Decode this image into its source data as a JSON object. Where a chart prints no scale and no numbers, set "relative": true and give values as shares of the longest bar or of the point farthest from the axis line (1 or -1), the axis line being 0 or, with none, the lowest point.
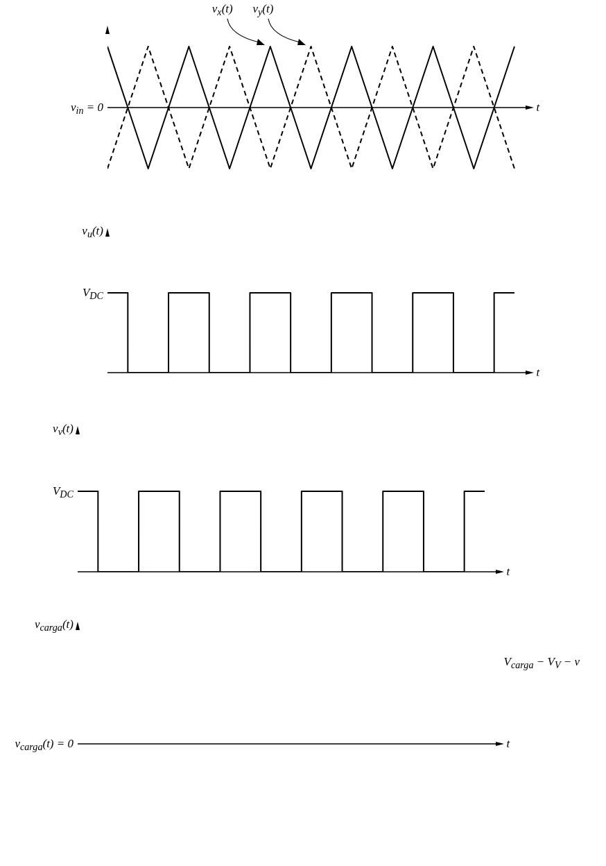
{
  "chart_data": [
    {
      "type": "line",
      "relative": true,
      "marker": "none",
      "xlabel": "t",
      "categories": [
        null,
        null,
        null,
        null,
        null,
        null,
        null,
        null,
        null,
        null,
        null,
        null,
        null,
        null,
        null,
        null,
        null,
        null,
        null,
        null,
        null
      ],
      "annotations": [
        "v$_{in}$ = 0"
      ],
      "series": [
        {
          "name": "v$_{x}$(t)",
          "color": "#000000",
          "line_style": "solid",
          "values": [
            1,
            0,
            -1,
            0,
            1,
            0,
            -1,
            0,
            1,
            0,
            -1,
            0,
            1,
            0,
            -1,
            0,
            1,
            0,
            -1,
            0,
            1
          ]
        },
        {
          "name": "v$_{y}$(t)",
          "color": "#000000",
          "line_style": "dashed",
          "values": [
            -1,
            0,
            1,
            0,
            -1,
            0,
            1,
            0,
            -1,
            0,
            1,
            0,
            -1,
            0,
            1,
            0,
            -1,
            0,
            1,
            0,
            -1
          ]
        }
      ]
    },
    {
      "type": "step",
      "relative": true,
      "marker": "none",
      "ylabel": "v$_{u}$(t)",
      "xlabel": "t",
      "categories": [
        null,
        null,
        null,
        null,
        null,
        null,
        null,
        null,
        null,
        null,
        null,
        null,
        null,
        null,
        null,
        null,
        null,
        null,
        null,
        null,
        null
      ],
      "annotations": [
        "V$_{DC}$"
      ],
      "color": "#000000",
      "values": [
        1,
        0,
        0,
        1,
        1,
        0,
        0,
        1,
        1,
        0,
        0,
        1,
        1,
        0,
        0,
        1,
        1,
        0,
        0,
        1,
        1
      ]
    },
    {
      "type": "step",
      "relative": true,
      "marker": "none",
      "ylabel": "v$_{v}$(t)",
      "xlabel": "t",
      "categories": [
        null,
        null,
        null,
        null,
        null,
        null,
        null,
        null,
        null,
        null,
        null,
        null,
        null,
        null,
        null,
        null,
        null,
        null,
        null,
        null,
        null
      ],
      "annotations": [
        "V$_{DC}$"
      ],
      "color": "#000000",
      "values": [
        1,
        0,
        0,
        1,
        1,
        0,
        0,
        1,
        1,
        0,
        0,
        1,
        1,
        0,
        0,
        1,
        1,
        0,
        0,
        1,
        1
      ]
    },
    {
      "type": "other",
      "ylabel": "v$_{carga}$(t)",
      "xlabel": "t",
      "annotations": [
        "v$_{carga}$(t) = 0",
        "V$_{carga}$ − V$_{V}$ − v"
      ]
    }
  ]
}
